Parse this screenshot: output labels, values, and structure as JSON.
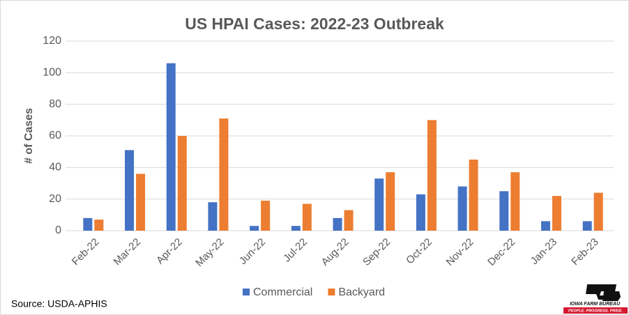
{
  "chart_data": {
    "type": "bar",
    "title": "US HPAI Cases: 2022-23 Outbreak",
    "y_label": "# of Cases",
    "categories": [
      "Feb-22",
      "Mar-22",
      "Apr-22",
      "May-22",
      "Jun-22",
      "Jul-22",
      "Aug-22",
      "Sep-22",
      "Oct-22",
      "Nov-22",
      "Dec-22",
      "Jan-23",
      "Feb-23"
    ],
    "series": [
      {
        "name": "Commercial",
        "color": "#4472c4",
        "values": [
          8,
          51,
          106,
          18,
          3,
          3,
          8,
          33,
          23,
          28,
          25,
          6,
          6
        ]
      },
      {
        "name": "Backyard",
        "color": "#ed7d31",
        "values": [
          7,
          36,
          60,
          71,
          19,
          17,
          13,
          37,
          70,
          45,
          37,
          22,
          24
        ]
      }
    ],
    "ylim": [
      0,
      120
    ],
    "yticks": [
      0,
      20,
      40,
      60,
      80,
      100,
      120
    ],
    "grid": true,
    "legend": "bottom",
    "source": "Source: USDA-APHIS",
    "logo": {
      "name": "IOWA FARM BUREAU",
      "tagline": "PEOPLE. PROGRESS. PRIDE."
    }
  }
}
